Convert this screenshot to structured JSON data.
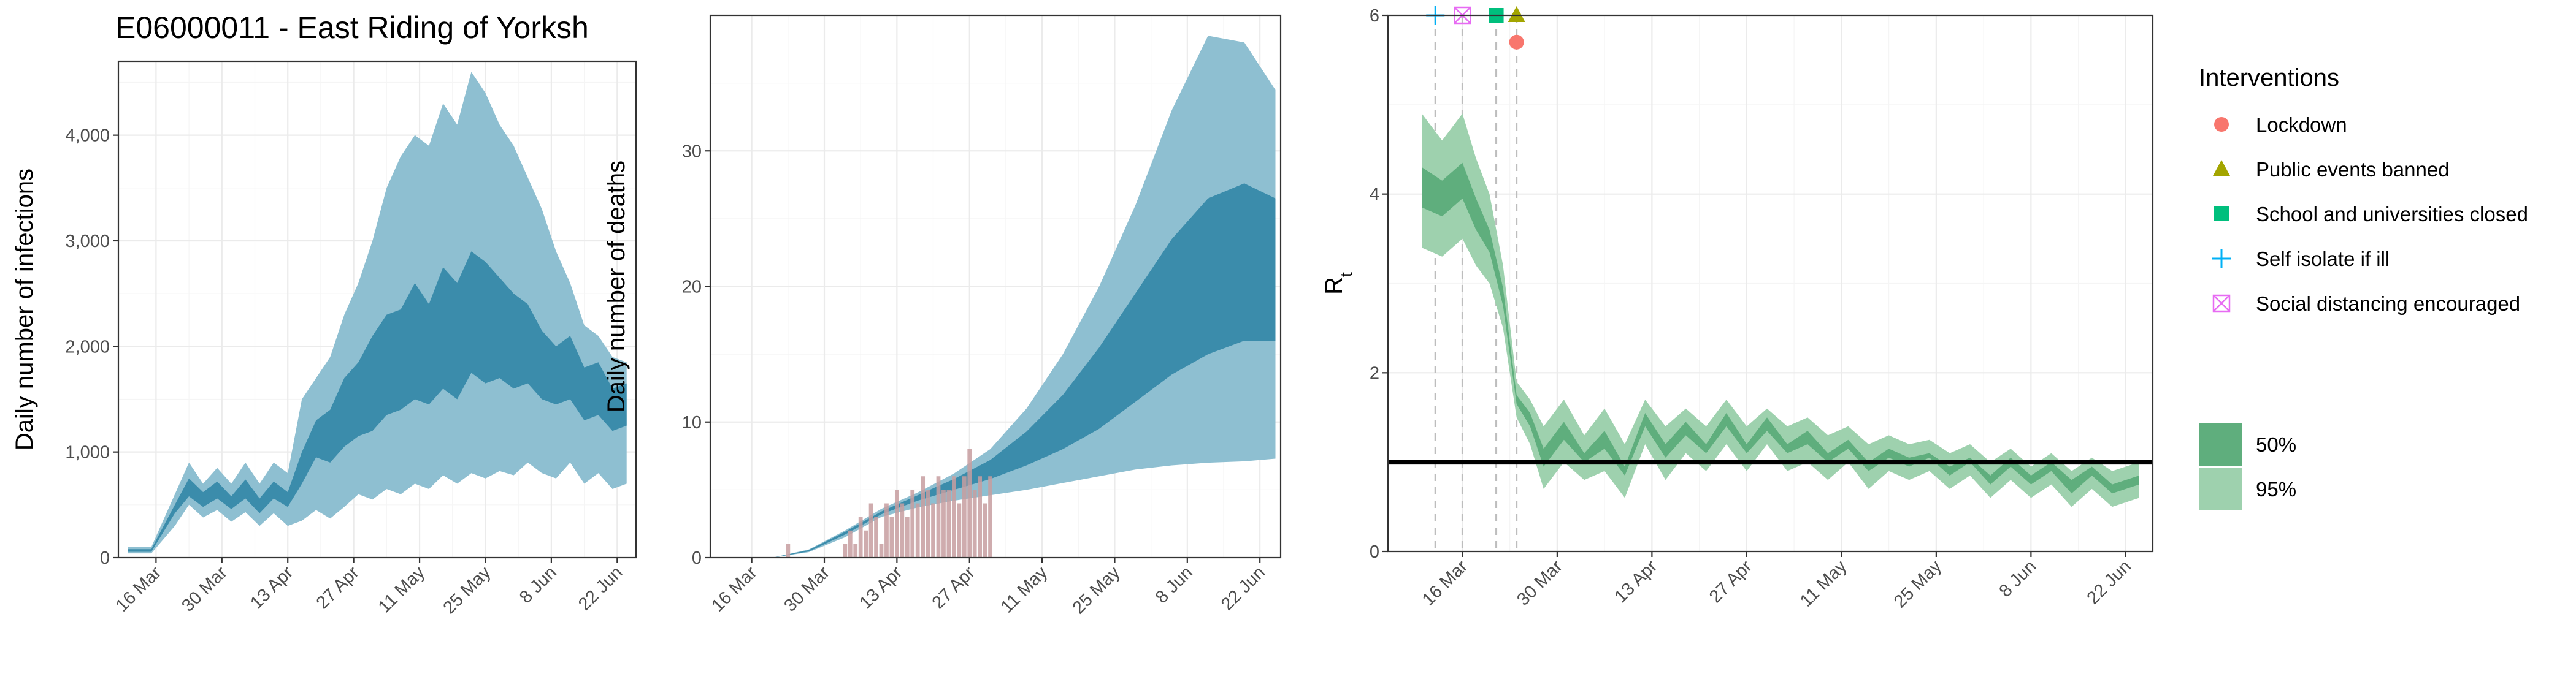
{
  "colors": {
    "band95": "#8ebfd1",
    "band50": "#3b8cab",
    "deaths_bar": "#c79ea0",
    "rt95": "#9ed1ae",
    "rt50": "#5fae7d",
    "lockdown": "#f8766d",
    "public_events": "#a3a500",
    "school": "#00bf7d",
    "self_isolate": "#00b0f6",
    "social_distancing": "#e76bf3"
  },
  "chart_data": [
    {
      "type": "area",
      "title": "E06000011 - East Riding of Yorksh",
      "xlabel": "",
      "ylabel": "Daily number of infections",
      "xlim": [
        "2020-03-08",
        "2020-06-26"
      ],
      "ylim": [
        0,
        4700
      ],
      "xticks": [
        "2020-03-16",
        "2020-03-30",
        "2020-04-13",
        "2020-04-27",
        "2020-05-11",
        "2020-05-25",
        "2020-06-08",
        "2020-06-22"
      ],
      "xtick_labels": [
        "16 Mar",
        "30 Mar",
        "13 Apr",
        "27 Apr",
        "11 May",
        "25 May",
        "8 Jun",
        "22 Jun"
      ],
      "yticks": [
        0,
        1000,
        2000,
        3000,
        4000
      ],
      "ytick_labels": [
        "0",
        "1,000",
        "2,000",
        "3,000",
        "4,000"
      ],
      "grid": true,
      "series": [
        {
          "name": "95%",
          "x": [
            "2020-03-10",
            "2020-03-15",
            "2020-03-20",
            "2020-03-23",
            "2020-03-26",
            "2020-03-29",
            "2020-04-01",
            "2020-04-04",
            "2020-04-07",
            "2020-04-10",
            "2020-04-13",
            "2020-04-16",
            "2020-04-19",
            "2020-04-22",
            "2020-04-25",
            "2020-04-28",
            "2020-05-01",
            "2020-05-04",
            "2020-05-07",
            "2020-05-10",
            "2020-05-13",
            "2020-05-16",
            "2020-05-19",
            "2020-05-22",
            "2020-05-25",
            "2020-05-28",
            "2020-05-31",
            "2020-06-03",
            "2020-06-06",
            "2020-06-09",
            "2020-06-12",
            "2020-06-15",
            "2020-06-18",
            "2020-06-21",
            "2020-06-24"
          ],
          "low": [
            40,
            40,
            300,
            500,
            380,
            450,
            340,
            430,
            300,
            420,
            300,
            350,
            450,
            370,
            480,
            600,
            550,
            650,
            600,
            700,
            650,
            780,
            700,
            800,
            750,
            820,
            780,
            900,
            800,
            750,
            900,
            700,
            800,
            650,
            700
          ],
          "high": [
            100,
            100,
            600,
            900,
            700,
            850,
            700,
            900,
            700,
            900,
            800,
            1500,
            1700,
            1900,
            2300,
            2600,
            3000,
            3500,
            3800,
            4000,
            3900,
            4300,
            4100,
            4600,
            4400,
            4100,
            3900,
            3600,
            3300,
            2900,
            2600,
            2200,
            2100,
            1900,
            1850
          ]
        },
        {
          "name": "50%",
          "x": [
            "2020-03-10",
            "2020-03-15",
            "2020-03-20",
            "2020-03-23",
            "2020-03-26",
            "2020-03-29",
            "2020-04-01",
            "2020-04-04",
            "2020-04-07",
            "2020-04-10",
            "2020-04-13",
            "2020-04-16",
            "2020-04-19",
            "2020-04-22",
            "2020-04-25",
            "2020-04-28",
            "2020-05-01",
            "2020-05-04",
            "2020-05-07",
            "2020-05-10",
            "2020-05-13",
            "2020-05-16",
            "2020-05-19",
            "2020-05-22",
            "2020-05-25",
            "2020-05-28",
            "2020-05-31",
            "2020-06-03",
            "2020-06-06",
            "2020-06-09",
            "2020-06-12",
            "2020-06-15",
            "2020-06-18",
            "2020-06-21",
            "2020-06-24"
          ],
          "low": [
            55,
            55,
            420,
            580,
            480,
            560,
            460,
            560,
            420,
            560,
            480,
            700,
            950,
            900,
            1050,
            1150,
            1200,
            1350,
            1400,
            1500,
            1450,
            1600,
            1500,
            1750,
            1650,
            1700,
            1600,
            1650,
            1500,
            1450,
            1500,
            1300,
            1350,
            1200,
            1250
          ],
          "high": [
            80,
            80,
            500,
            750,
            620,
            720,
            580,
            740,
            560,
            720,
            620,
            1000,
            1300,
            1400,
            1700,
            1850,
            2100,
            2300,
            2350,
            2600,
            2400,
            2750,
            2600,
            2900,
            2800,
            2650,
            2500,
            2400,
            2150,
            2000,
            2100,
            1800,
            1850,
            1600,
            1650
          ]
        }
      ]
    },
    {
      "type": "bar",
      "title": "",
      "xlabel": "",
      "ylabel": "Daily number of deaths",
      "xlim": [
        "2020-03-08",
        "2020-06-26"
      ],
      "ylim": [
        0,
        40
      ],
      "xticks": [
        "2020-03-16",
        "2020-03-30",
        "2020-04-13",
        "2020-04-27",
        "2020-05-11",
        "2020-05-25",
        "2020-06-08",
        "2020-06-22"
      ],
      "xtick_labels": [
        "16 Mar",
        "30 Mar",
        "13 Apr",
        "27 Apr",
        "11 May",
        "25 May",
        "8 Jun",
        "22 Jun"
      ],
      "yticks": [
        0,
        10,
        20,
        30
      ],
      "ytick_labels": [
        "0",
        "10",
        "20",
        "30"
      ],
      "grid": true,
      "bars": {
        "x": [
          "2020-03-23",
          "2020-04-03",
          "2020-04-04",
          "2020-04-05",
          "2020-04-06",
          "2020-04-07",
          "2020-04-08",
          "2020-04-09",
          "2020-04-10",
          "2020-04-11",
          "2020-04-12",
          "2020-04-13",
          "2020-04-14",
          "2020-04-15",
          "2020-04-16",
          "2020-04-17",
          "2020-04-18",
          "2020-04-19",
          "2020-04-20",
          "2020-04-21",
          "2020-04-22",
          "2020-04-23",
          "2020-04-24",
          "2020-04-25",
          "2020-04-26",
          "2020-04-27",
          "2020-04-28",
          "2020-04-29",
          "2020-04-30",
          "2020-05-01"
        ],
        "values": [
          1,
          1,
          2,
          1,
          3,
          2,
          4,
          3,
          1,
          4,
          3,
          5,
          4,
          3,
          5,
          4,
          6,
          5,
          4,
          6,
          5,
          5,
          6,
          4,
          6,
          8,
          5,
          6,
          4,
          6
        ]
      },
      "series": [
        {
          "name": "95%",
          "x": [
            "2020-03-20",
            "2020-03-27",
            "2020-04-03",
            "2020-04-10",
            "2020-04-17",
            "2020-04-24",
            "2020-05-01",
            "2020-05-08",
            "2020-05-15",
            "2020-05-22",
            "2020-05-29",
            "2020-06-05",
            "2020-06-12",
            "2020-06-19",
            "2020-06-25"
          ],
          "low": [
            0,
            0.4,
            1.5,
            3.0,
            3.7,
            4.2,
            4.6,
            5.0,
            5.5,
            6.0,
            6.5,
            6.8,
            7.0,
            7.1,
            7.3
          ],
          "high": [
            0,
            0.6,
            2.0,
            3.6,
            4.8,
            6.2,
            8.0,
            11.0,
            15.0,
            20.0,
            26.0,
            33.0,
            38.5,
            38.0,
            34.5
          ]
        },
        {
          "name": "50%",
          "x": [
            "2020-03-20",
            "2020-03-27",
            "2020-04-03",
            "2020-04-10",
            "2020-04-17",
            "2020-04-24",
            "2020-05-01",
            "2020-05-08",
            "2020-05-15",
            "2020-05-22",
            "2020-05-29",
            "2020-06-05",
            "2020-06-12",
            "2020-06-19",
            "2020-06-25"
          ],
          "low": [
            0,
            0.45,
            1.7,
            3.2,
            4.2,
            5.0,
            5.8,
            6.8,
            8.0,
            9.5,
            11.5,
            13.5,
            15.0,
            16.0,
            16.0
          ],
          "high": [
            0,
            0.55,
            1.9,
            3.4,
            4.6,
            5.8,
            7.2,
            9.3,
            12.0,
            15.5,
            19.5,
            23.5,
            26.5,
            27.6,
            26.5
          ]
        }
      ]
    },
    {
      "type": "area",
      "title": "",
      "xlabel": "",
      "ylabel": "R",
      "ylabel_subscript": "t",
      "xlim": [
        "2020-03-05",
        "2020-06-26"
      ],
      "ylim": [
        0,
        6
      ],
      "xticks": [
        "2020-03-16",
        "2020-03-30",
        "2020-04-13",
        "2020-04-27",
        "2020-05-11",
        "2020-05-25",
        "2020-06-08",
        "2020-06-22"
      ],
      "xtick_labels": [
        "16 Mar",
        "30 Mar",
        "13 Apr",
        "27 Apr",
        "11 May",
        "25 May",
        "8 Jun",
        "22 Jun"
      ],
      "yticks": [
        0,
        2,
        4,
        6
      ],
      "ytick_labels": [
        "0",
        "2",
        "4",
        "6"
      ],
      "grid": true,
      "reference_line": 1,
      "series": [
        {
          "name": "95%",
          "x": [
            "2020-03-10",
            "2020-03-13",
            "2020-03-16",
            "2020-03-18",
            "2020-03-20",
            "2020-03-22",
            "2020-03-24",
            "2020-03-26",
            "2020-03-28",
            "2020-03-31",
            "2020-04-03",
            "2020-04-06",
            "2020-04-09",
            "2020-04-12",
            "2020-04-15",
            "2020-04-18",
            "2020-04-21",
            "2020-04-24",
            "2020-04-27",
            "2020-04-30",
            "2020-05-03",
            "2020-05-06",
            "2020-05-09",
            "2020-05-12",
            "2020-05-15",
            "2020-05-18",
            "2020-05-21",
            "2020-05-24",
            "2020-05-27",
            "2020-05-30",
            "2020-06-02",
            "2020-06-05",
            "2020-06-08",
            "2020-06-11",
            "2020-06-14",
            "2020-06-17",
            "2020-06-20",
            "2020-06-24"
          ],
          "low": [
            3.4,
            3.3,
            3.5,
            3.2,
            3.0,
            2.5,
            1.5,
            1.2,
            0.7,
            1.0,
            0.8,
            0.9,
            0.6,
            1.2,
            0.8,
            1.1,
            0.9,
            1.2,
            0.9,
            1.2,
            0.9,
            1.0,
            0.8,
            1.0,
            0.7,
            0.9,
            0.8,
            0.9,
            0.7,
            0.85,
            0.6,
            0.8,
            0.6,
            0.75,
            0.5,
            0.7,
            0.5,
            0.6
          ],
          "high": [
            4.9,
            4.6,
            4.9,
            4.4,
            4.0,
            3.2,
            1.9,
            1.7,
            1.4,
            1.7,
            1.3,
            1.6,
            1.2,
            1.7,
            1.4,
            1.6,
            1.4,
            1.7,
            1.4,
            1.6,
            1.4,
            1.5,
            1.3,
            1.4,
            1.2,
            1.3,
            1.2,
            1.25,
            1.1,
            1.2,
            1.0,
            1.15,
            0.95,
            1.1,
            0.9,
            1.05,
            0.9,
            1.0
          ]
        },
        {
          "name": "50%",
          "x": [
            "2020-03-10",
            "2020-03-13",
            "2020-03-16",
            "2020-03-18",
            "2020-03-20",
            "2020-03-22",
            "2020-03-24",
            "2020-03-26",
            "2020-03-28",
            "2020-03-31",
            "2020-04-03",
            "2020-04-06",
            "2020-04-09",
            "2020-04-12",
            "2020-04-15",
            "2020-04-18",
            "2020-04-21",
            "2020-04-24",
            "2020-04-27",
            "2020-04-30",
            "2020-05-03",
            "2020-05-06",
            "2020-05-09",
            "2020-05-12",
            "2020-05-15",
            "2020-05-18",
            "2020-05-21",
            "2020-05-24",
            "2020-05-27",
            "2020-05-30",
            "2020-06-02",
            "2020-06-05",
            "2020-06-08",
            "2020-06-11",
            "2020-06-14",
            "2020-06-17",
            "2020-06-20",
            "2020-06-24"
          ],
          "low": [
            3.85,
            3.75,
            3.95,
            3.6,
            3.35,
            2.75,
            1.65,
            1.4,
            0.95,
            1.25,
            1.0,
            1.15,
            0.85,
            1.4,
            1.05,
            1.3,
            1.1,
            1.4,
            1.1,
            1.35,
            1.1,
            1.2,
            1.0,
            1.15,
            0.9,
            1.05,
            0.95,
            1.05,
            0.85,
            1.0,
            0.75,
            0.95,
            0.75,
            0.9,
            0.65,
            0.85,
            0.65,
            0.75
          ],
          "high": [
            4.3,
            4.15,
            4.35,
            3.95,
            3.6,
            2.95,
            1.75,
            1.55,
            1.15,
            1.45,
            1.1,
            1.35,
            0.95,
            1.55,
            1.2,
            1.45,
            1.2,
            1.55,
            1.2,
            1.5,
            1.2,
            1.35,
            1.1,
            1.25,
            1.0,
            1.15,
            1.05,
            1.1,
            0.95,
            1.05,
            0.85,
            1.05,
            0.85,
            1.0,
            0.8,
            0.95,
            0.75,
            0.85
          ]
        }
      ],
      "interventions": [
        {
          "name": "Self isolate if ill",
          "date": "2020-03-12",
          "y": 6.0
        },
        {
          "name": "Social distancing encouraged",
          "date": "2020-03-16",
          "y": 6.0
        },
        {
          "name": "School and universities closed",
          "date": "2020-03-21",
          "y": 6.0
        },
        {
          "name": "Public events banned",
          "date": "2020-03-24",
          "y": 6.0
        },
        {
          "name": "Lockdown",
          "date": "2020-03-24",
          "y": 5.7
        }
      ]
    }
  ],
  "legend": {
    "title": "Interventions",
    "items": [
      {
        "label": "Lockdown",
        "marker": "circle",
        "color": "#f8766d"
      },
      {
        "label": "Public events banned",
        "marker": "triangle",
        "color": "#a3a500"
      },
      {
        "label": "School and universities closed",
        "marker": "square",
        "color": "#00bf7d"
      },
      {
        "label": "Self isolate if ill",
        "marker": "plus",
        "color": "#00b0f6"
      },
      {
        "label": "Social distancing encouraged",
        "marker": "boxed-x",
        "color": "#e76bf3"
      }
    ],
    "ci_items": [
      {
        "label": "50%",
        "color": "#5fae7d"
      },
      {
        "label": "95%",
        "color": "#9ed1ae"
      }
    ]
  }
}
